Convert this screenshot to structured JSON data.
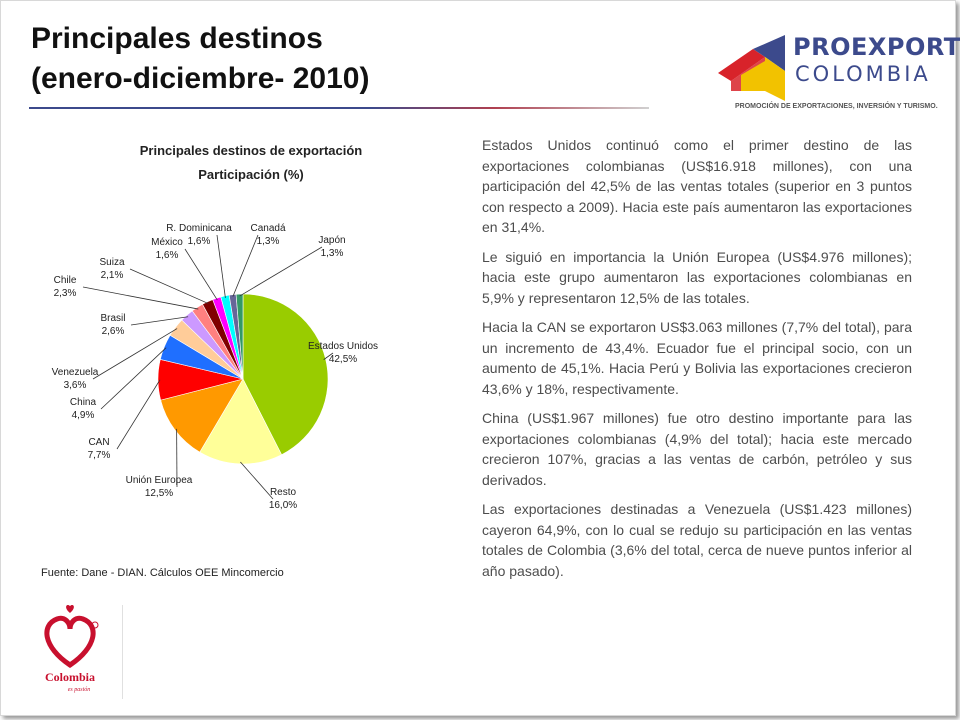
{
  "title": "Principales destinos\n(enero-diciembre- 2010)",
  "logo": {
    "word1": "PROEXPORT",
    "word2": "COLOMBIA",
    "tagline": "PROMOCIÓN DE EXPORTACIONES, INVERSIÓN Y TURISMO."
  },
  "chart_data": {
    "type": "pie",
    "title": "Principales destinos de exportación",
    "subtitle": "Participación (%)",
    "slices": [
      {
        "label": "Estados Unidos",
        "value_text": "42,5%",
        "value": 42.5,
        "color": "#99cc00"
      },
      {
        "label": "Resto",
        "value_text": "16,0%",
        "value": 16.0,
        "color": "#ffff99"
      },
      {
        "label": "Unión Europea",
        "value_text": "12,5%",
        "value": 12.5,
        "color": "#ff9900"
      },
      {
        "label": "CAN",
        "value_text": "7,7%",
        "value": 7.7,
        "color": "#ff0000"
      },
      {
        "label": "China",
        "value_text": "4,9%",
        "value": 4.9,
        "color": "#1f6fff"
      },
      {
        "label": "Venezuela",
        "value_text": "3,6%",
        "value": 3.6,
        "color": "#ffcc99"
      },
      {
        "label": "Brasil",
        "value_text": "2,6%",
        "value": 2.6,
        "color": "#cc99ff"
      },
      {
        "label": "Chile",
        "value_text": "2,3%",
        "value": 2.3,
        "color": "#ff8080"
      },
      {
        "label": "Suiza",
        "value_text": "2,1%",
        "value": 2.1,
        "color": "#800000"
      },
      {
        "label": "México",
        "value_text": "1,6%",
        "value": 1.6,
        "color": "#ff00ff"
      },
      {
        "label": "R. Dominicana",
        "value_text": "1,6%",
        "value": 1.6,
        "color": "#00ffff"
      },
      {
        "label": "Canadá",
        "value_text": "1,3%",
        "value": 1.3,
        "color": "#666699"
      },
      {
        "label": "Japón",
        "value_text": "1,3%",
        "value": 1.3,
        "color": "#339966"
      }
    ]
  },
  "source": "Fuente: Dane - DIAN. Cálculos OEE Mincomercio",
  "paragraphs": [
    "Estados Unidos continuó como el primer destino de las exportaciones colombianas (US$16.918 millones), con una participación del 42,5% de las ventas totales (superior en 3 puntos con respecto a 2009). Hacia este país aumentaron las exportaciones en 31,4%.",
    "Le siguió en importancia la Unión Europea (US$4.976 millones); hacia este grupo aumentaron las exportaciones colombianas en 5,9% y representaron 12,5% de las totales.",
    "Hacia la CAN se exportaron US$3.063 millones (7,7% del total), para un incremento de 43,4%. Ecuador fue el principal socio, con un aumento de 45,1%. Hacia Perú y Bolivia las exportaciones crecieron 43,6% y 18%, respectivamente.",
    "China (US$1.967 millones) fue otro destino importante para las exportaciones colombianas (4,9% del total); hacia este mercado crecieron 107%, gracias a las ventas de carbón, petróleo y sus derivados.",
    "Las exportaciones destinadas a Venezuela (US$1.423 millones) cayeron 64,9%, con lo cual se redujo su participación en las ventas totales de Colombia (3,6% del total, cerca de nueve puntos inferior al año pasado)."
  ],
  "footer_logo": {
    "word": "Colombia",
    "tagline": "es pasión"
  },
  "colors": {
    "accent_blue": "#3c4a8c",
    "logo_yellow": "#f2c200",
    "logo_red": "#d8232a",
    "colombia_red": "#c8102e"
  }
}
